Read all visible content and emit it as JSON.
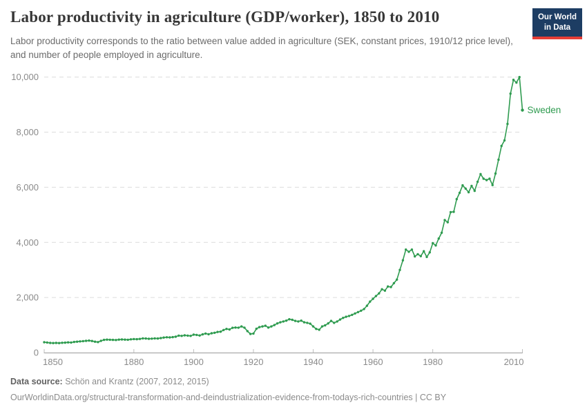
{
  "header": {
    "title": "Labor productivity in agriculture (GDP/worker), 1850 to 2010",
    "subtitle": "Labor productivity corresponds to the ratio between value added in agriculture (SEK, constant prices, 1910/12 price level), and number of people employed in agriculture.",
    "logo": {
      "line1": "Our World",
      "line2": "in Data",
      "bg_color": "#1d3d63",
      "accent_color": "#e63e36"
    }
  },
  "chart_data": {
    "type": "line",
    "title": "Labor productivity in agriculture (GDP/worker), 1850 to 2010",
    "xlabel": "",
    "ylabel": "",
    "xlim": [
      1850,
      2010
    ],
    "ylim": [
      0,
      10000
    ],
    "grid": "horizontal-dashed",
    "legend_position": "end-of-line-label",
    "colors": {
      "line": "#2e9b4f",
      "grid": "#dcdcdc",
      "axis": "#9a9a9a",
      "tick_text": "#8a8a8a"
    },
    "x_ticks": {
      "values": [
        1850,
        1880,
        1900,
        1920,
        1940,
        1960,
        1980,
        2010
      ],
      "labels": [
        "1850",
        "1880",
        "1900",
        "1920",
        "1940",
        "1960",
        "1980",
        "2010"
      ]
    },
    "y_ticks": {
      "values": [
        0,
        2000,
        4000,
        6000,
        8000,
        10000
      ],
      "labels": [
        "0",
        "2,000",
        "4,000",
        "6,000",
        "8,000",
        "10,000"
      ]
    },
    "series": [
      {
        "name": "Sweden",
        "color": "#2e9b4f",
        "x": [
          1850,
          1851,
          1852,
          1853,
          1854,
          1855,
          1856,
          1857,
          1858,
          1859,
          1860,
          1861,
          1862,
          1863,
          1864,
          1865,
          1866,
          1867,
          1868,
          1869,
          1870,
          1871,
          1872,
          1873,
          1874,
          1875,
          1876,
          1877,
          1878,
          1879,
          1880,
          1881,
          1882,
          1883,
          1884,
          1885,
          1886,
          1887,
          1888,
          1889,
          1890,
          1891,
          1892,
          1893,
          1894,
          1895,
          1896,
          1897,
          1898,
          1899,
          1900,
          1901,
          1902,
          1903,
          1904,
          1905,
          1906,
          1907,
          1908,
          1909,
          1910,
          1911,
          1912,
          1913,
          1914,
          1915,
          1916,
          1917,
          1918,
          1919,
          1920,
          1921,
          1922,
          1923,
          1924,
          1925,
          1926,
          1927,
          1928,
          1929,
          1930,
          1931,
          1932,
          1933,
          1934,
          1935,
          1936,
          1937,
          1938,
          1939,
          1940,
          1941,
          1942,
          1943,
          1944,
          1945,
          1946,
          1947,
          1948,
          1949,
          1950,
          1951,
          1952,
          1953,
          1954,
          1955,
          1956,
          1957,
          1958,
          1959,
          1960,
          1961,
          1962,
          1963,
          1964,
          1965,
          1966,
          1967,
          1968,
          1969,
          1970,
          1971,
          1972,
          1973,
          1974,
          1975,
          1976,
          1977,
          1978,
          1979,
          1980,
          1981,
          1982,
          1983,
          1984,
          1985,
          1986,
          1987,
          1988,
          1989,
          1990,
          1991,
          1992,
          1993,
          1994,
          1995,
          1996,
          1997,
          1998,
          1999,
          2000,
          2001,
          2002,
          2003,
          2004,
          2005,
          2006,
          2007,
          2008,
          2009,
          2010
        ],
        "values": [
          375,
          365,
          350,
          345,
          350,
          345,
          355,
          360,
          370,
          365,
          385,
          395,
          405,
          415,
          425,
          435,
          420,
          395,
          380,
          425,
          460,
          470,
          465,
          460,
          455,
          470,
          475,
          470,
          465,
          480,
          490,
          485,
          495,
          515,
          510,
          500,
          505,
          515,
          510,
          525,
          545,
          555,
          550,
          560,
          575,
          615,
          605,
          625,
          615,
          605,
          650,
          640,
          620,
          660,
          690,
          665,
          700,
          720,
          750,
          760,
          820,
          860,
          840,
          900,
          910,
          905,
          950,
          905,
          780,
          675,
          690,
          865,
          925,
          950,
          975,
          910,
          950,
          1000,
          1060,
          1100,
          1130,
          1160,
          1210,
          1190,
          1150,
          1130,
          1160,
          1100,
          1080,
          1050,
          950,
          860,
          830,
          950,
          990,
          1060,
          1150,
          1080,
          1130,
          1200,
          1260,
          1300,
          1330,
          1370,
          1420,
          1470,
          1520,
          1580,
          1700,
          1850,
          1950,
          2050,
          2150,
          2300,
          2250,
          2400,
          2380,
          2520,
          2650,
          3000,
          3350,
          3740,
          3660,
          3740,
          3490,
          3570,
          3500,
          3680,
          3470,
          3640,
          3970,
          3890,
          4140,
          4350,
          4810,
          4730,
          5100,
          5110,
          5570,
          5800,
          6070,
          5950,
          5820,
          6050,
          5870,
          6200,
          6480,
          6310,
          6260,
          6310,
          6080,
          6500,
          7000,
          7500,
          7700,
          8300,
          9400,
          9900,
          9800,
          10000,
          8800
        ]
      }
    ]
  },
  "footer": {
    "source_label": "Data source:",
    "source_value": " Schön and Krantz (2007, 2012, 2015)",
    "url_line": "OurWorldinData.org/structural-transformation-and-deindustrialization-evidence-from-todays-rich-countries | CC BY"
  }
}
